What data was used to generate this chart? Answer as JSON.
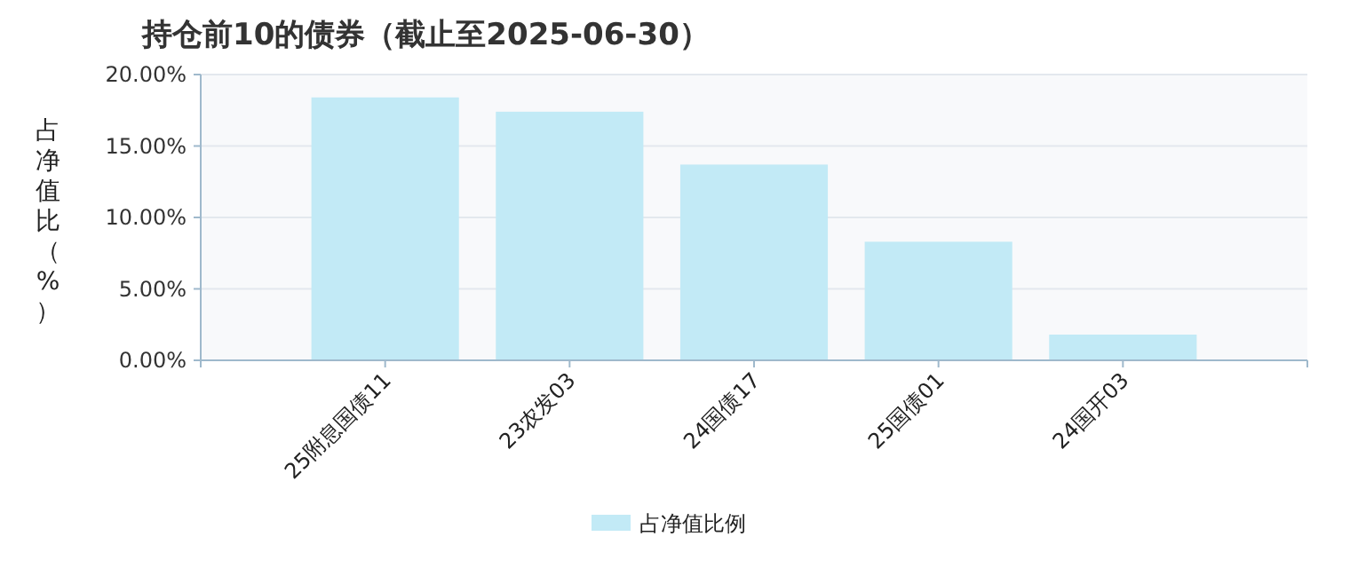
{
  "chart_data": {
    "type": "bar",
    "title": "持仓前10的债券（截止至2025-06-30）",
    "ylabel": "占净值比（%）",
    "categories": [
      "25附息国债11",
      "23农发03",
      "24国债17",
      "25国债01",
      "24国开03"
    ],
    "series": [
      {
        "name": "占净值比例",
        "color": "#c2eaf6",
        "values": [
          18.4,
          17.4,
          13.7,
          8.3,
          1.8
        ]
      }
    ],
    "ylim": [
      0,
      20
    ],
    "yticks": [
      {
        "value": 0,
        "label": "0.00%"
      },
      {
        "value": 5,
        "label": "5.00%"
      },
      {
        "value": 10,
        "label": "10.00%"
      },
      {
        "value": 15,
        "label": "15.00%"
      },
      {
        "value": 20,
        "label": "20.00%"
      }
    ],
    "grid": "y",
    "legend": "bottom"
  }
}
